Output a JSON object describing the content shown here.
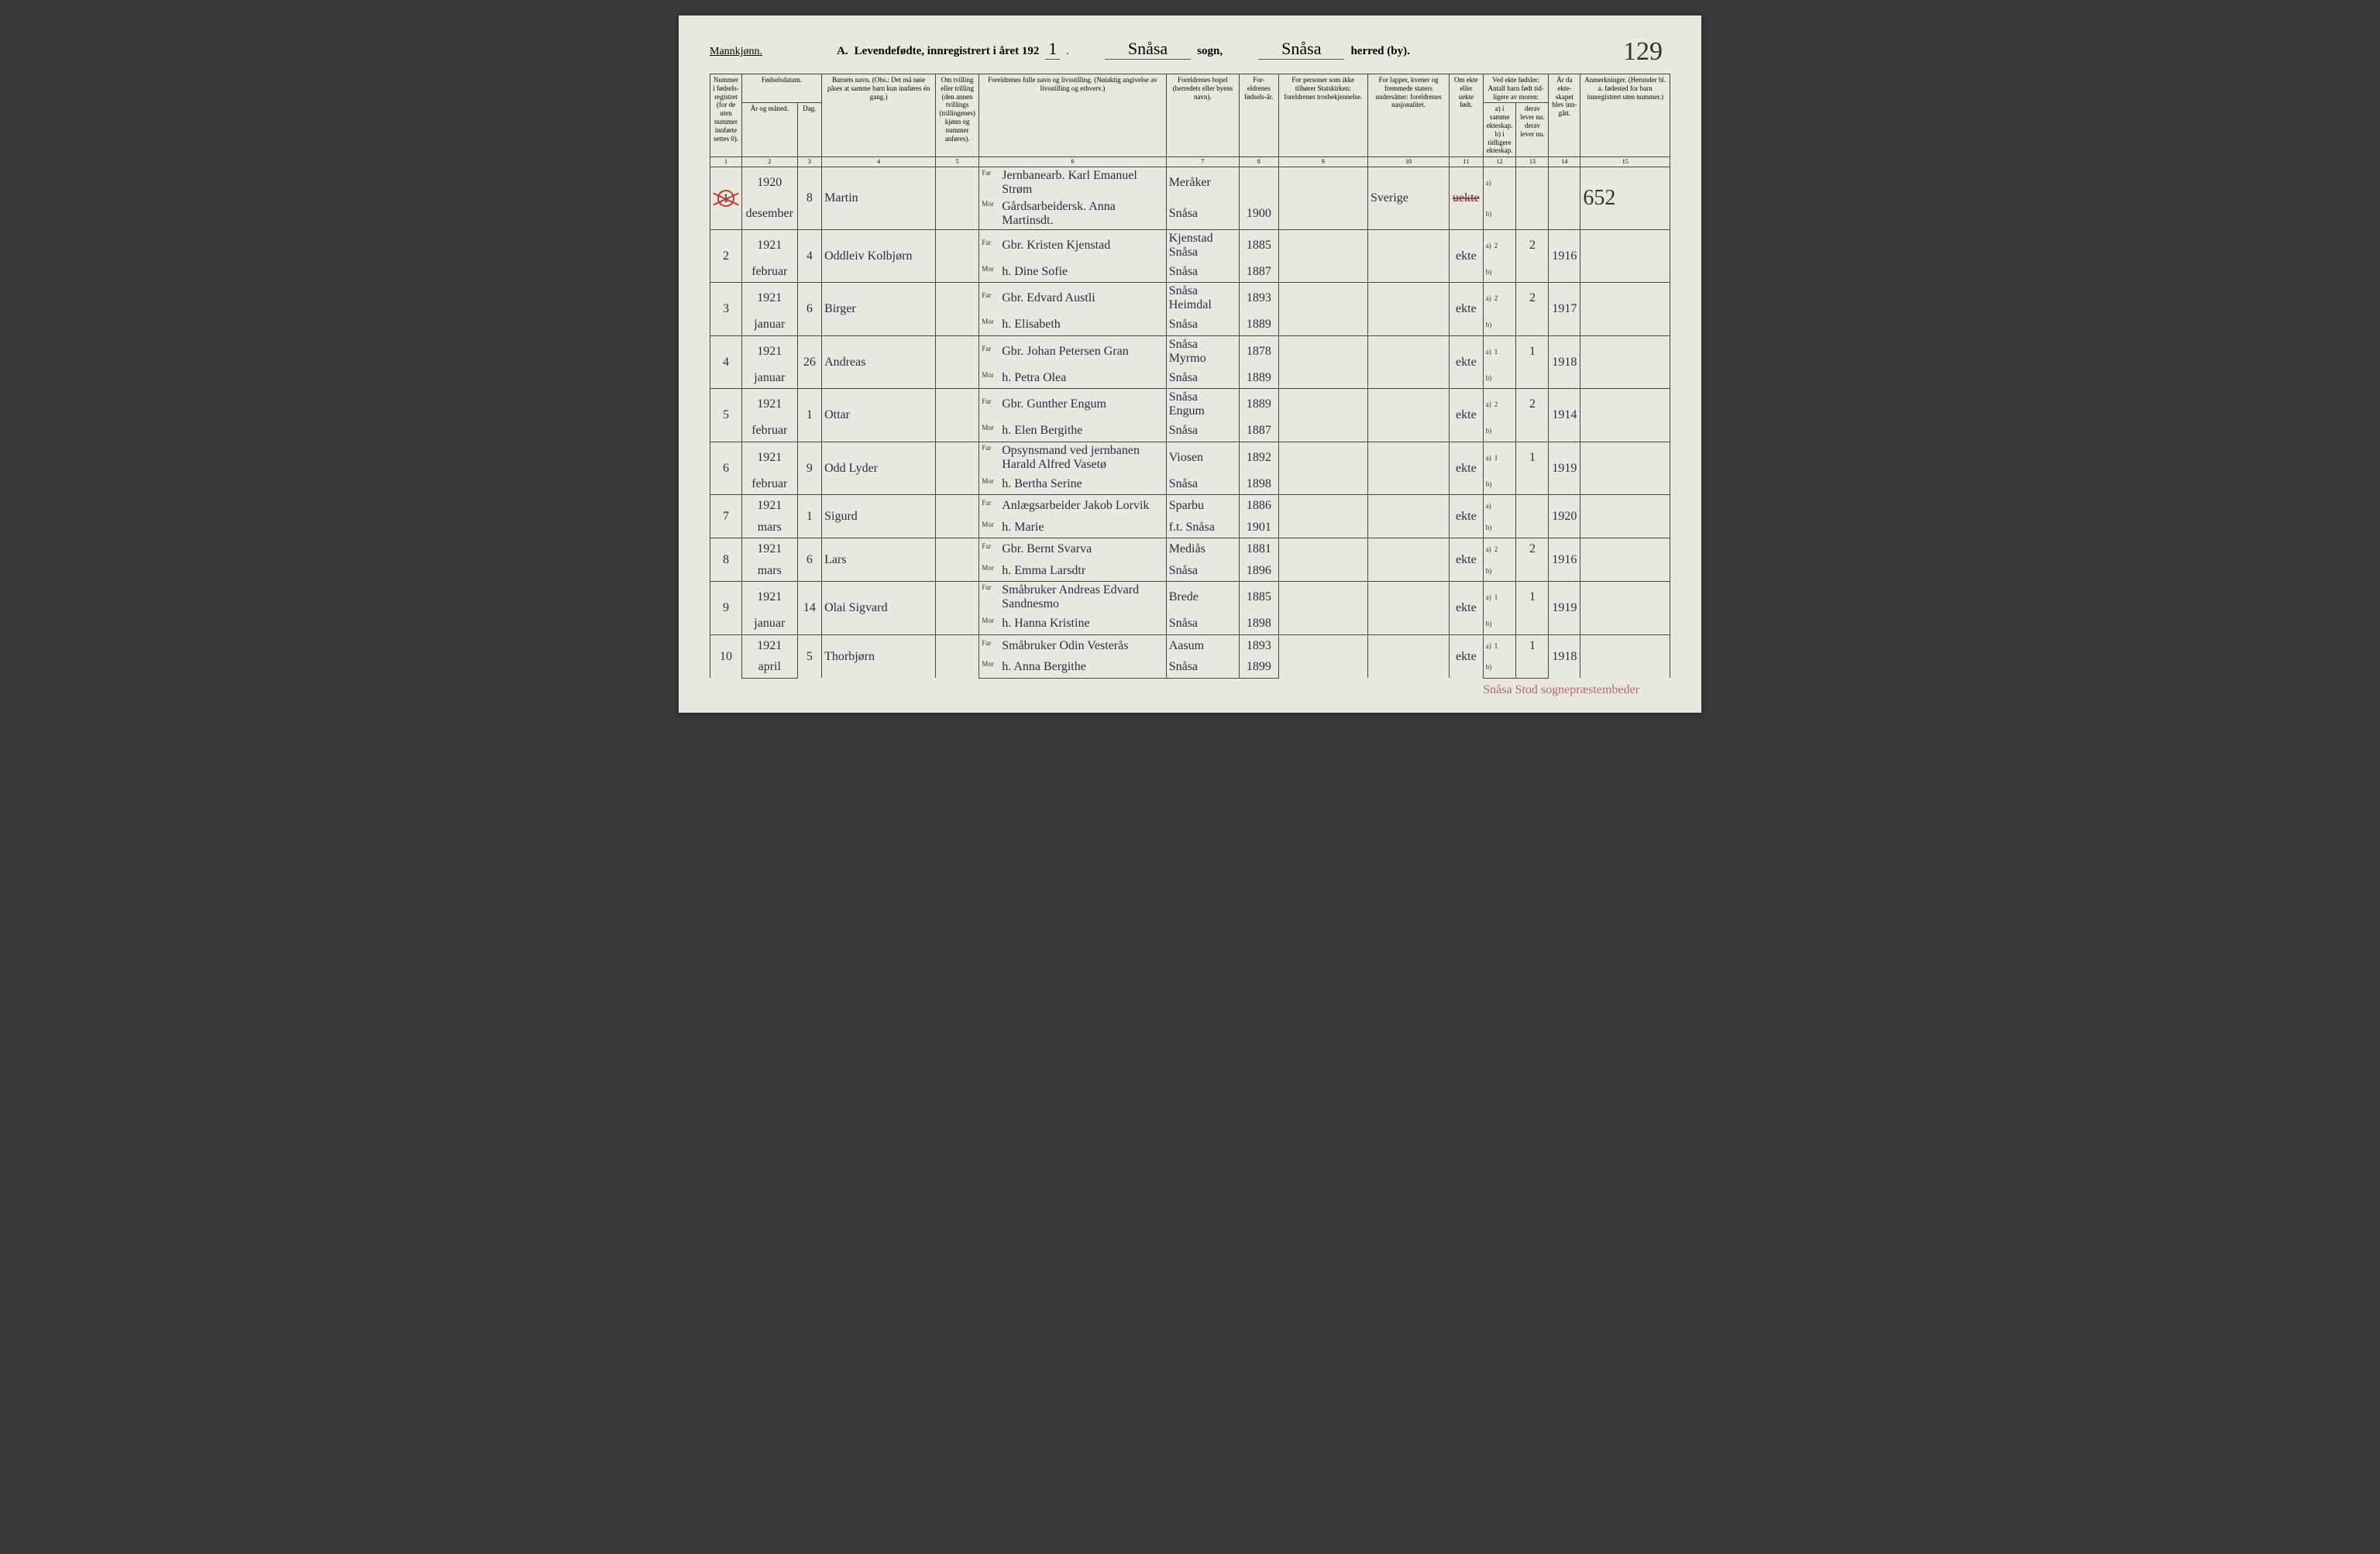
{
  "header": {
    "gender": "Mannkjønn.",
    "title_a": "A.",
    "title_text": "Levendefødte, innregistrert i året 192",
    "year_suffix": "1",
    "sogn_value": "Snåsa",
    "sogn_label": "sogn,",
    "herred_value": "Snåsa",
    "herred_label": "herred (by).",
    "page_number": "129"
  },
  "columns": {
    "c1": "Nummer i fødsels-registret (for de uten nummer innførte settes 0).",
    "c2_top": "Fødselsdatum.",
    "c2_a": "År og måned.",
    "c2_b": "Dag.",
    "c4": "Barnets navn. (Obs.: Det må nøie påses at samme barn kun innføres én gang.)",
    "c5": "Om tvilling eller trilling (den annen tvillings (trillingenes) kjønn og nummer anføres).",
    "c6": "Foreldrenes fulle navn og livsstilling. (Nøiaktig angivelse av livsstilling og erhverv.)",
    "c7": "Foreldrenes bopel (herredets eller byens navn).",
    "c8": "For-eldrenes fødsels-år.",
    "c9": "For personer som ikke tilhører Statskirken: foreldrenes trosbekjennelse.",
    "c10": "For lapper, kvener og fremmede staters undersåtter: foreldrenes nasjonalitet.",
    "c11": "Om ekte eller uekte født.",
    "c12_top": "Ved ekte fødsler: Antall barn født tid-ligere av moren:",
    "c12_a": "a) i samme ekteskap.",
    "c12_b": "b) i tidligere ekteskap.",
    "c13_top": "derav lever nu.",
    "c13_b": "derav lever nu.",
    "c14": "År da ekte-skapet blev inn-gått.",
    "c15": "Anmerkninger. (Herunder bl. a. fødested for barn innregistrert uten nummer.)",
    "nums": [
      "1",
      "2",
      "3",
      "4",
      "5",
      "6",
      "7",
      "8",
      "9",
      "10",
      "11",
      "12",
      "13",
      "14",
      "15"
    ],
    "far": "Far",
    "mor": "Mor",
    "a": "a)",
    "b": "b)"
  },
  "rows": [
    {
      "num": "1",
      "crossed": true,
      "year": "1920",
      "month": "desember",
      "day": "8",
      "child": "Martin",
      "far": "Jernbanearb. Karl Emanuel Strøm",
      "mor": "Gårdsarbeidersk. Anna Martinsdt.",
      "place_f": "Meråker",
      "place_m": "Snåsa",
      "pyear_f": "",
      "pyear_m": "1900",
      "nat": "Sverige",
      "ekte": "uekte",
      "ekte_strike": true,
      "a": "",
      "b": "",
      "c13": "",
      "c14": "",
      "note": "652"
    },
    {
      "num": "2",
      "year": "1921",
      "month": "februar",
      "day": "4",
      "child": "Oddleiv Kolbjørn",
      "far": "Gbr. Kristen Kjenstad",
      "mor": "h. Dine Sofie",
      "place_f": "Kjenstad Snåsa",
      "place_m": "Snåsa",
      "pyear_f": "1885",
      "pyear_m": "1887",
      "nat": "",
      "ekte": "ekte",
      "a": "2",
      "b": "",
      "c13": "2",
      "c14": "1916",
      "note": ""
    },
    {
      "num": "3",
      "year": "1921",
      "month": "januar",
      "day": "6",
      "child": "Birger",
      "far": "Gbr. Edvard Austli",
      "mor": "h. Elisabeth",
      "place_f": "Snåsa Heimdal",
      "place_m": "Snåsa",
      "pyear_f": "1893",
      "pyear_m": "1889",
      "nat": "",
      "ekte": "ekte",
      "a": "2",
      "b": "",
      "c13": "2",
      "c14": "1917",
      "note": ""
    },
    {
      "num": "4",
      "year": "1921",
      "month": "januar",
      "day": "26",
      "child": "Andreas",
      "far": "Gbr. Johan Petersen Gran",
      "mor": "h. Petra Olea",
      "place_f": "Snåsa Myrmo",
      "place_m": "Snåsa",
      "pyear_f": "1878",
      "pyear_m": "1889",
      "nat": "",
      "ekte": "ekte",
      "a": "1",
      "b": "",
      "c13": "1",
      "c14": "1918",
      "note": ""
    },
    {
      "num": "5",
      "year": "1921",
      "month": "februar",
      "day": "1",
      "child": "Ottar",
      "far": "Gbr. Gunther Engum",
      "mor": "h. Elen Bergithe",
      "place_f": "Snåsa Engum",
      "place_m": "Snåsa",
      "pyear_f": "1889",
      "pyear_m": "1887",
      "nat": "",
      "ekte": "ekte",
      "a": "2",
      "b": "",
      "c13": "2",
      "c14": "1914",
      "note": ""
    },
    {
      "num": "6",
      "year": "1921",
      "month": "februar",
      "day": "9",
      "child": "Odd Lyder",
      "far": "Opsynsmand ved jernbanen Harald Alfred Vasetø",
      "mor": "h. Bertha Serine",
      "place_f": "Viosen",
      "place_m": "Snåsa",
      "pyear_f": "1892",
      "pyear_m": "1898",
      "nat": "",
      "ekte": "ekte",
      "a": "1",
      "b": "",
      "c13": "1",
      "c14": "1919",
      "note": ""
    },
    {
      "num": "7",
      "year": "1921",
      "month": "mars",
      "day": "1",
      "child": "Sigurd",
      "far": "Anlægsarbeider Jakob Lorvik",
      "mor": "h. Marie",
      "place_f": "Sparbu",
      "place_m": "f.t. Snåsa",
      "pyear_f": "1886",
      "pyear_m": "1901",
      "nat": "",
      "ekte": "ekte",
      "a": "",
      "b": "",
      "c13": "",
      "c14": "1920",
      "note": ""
    },
    {
      "num": "8",
      "year": "1921",
      "month": "mars",
      "day": "6",
      "child": "Lars",
      "far": "Gbr. Bernt Svarva",
      "mor": "h. Emma Larsdtr",
      "place_f": "Mediås",
      "place_m": "Snåsa",
      "pyear_f": "1881",
      "pyear_m": "1896",
      "nat": "",
      "ekte": "ekte",
      "a": "2",
      "b": "",
      "c13": "2",
      "c14": "1916",
      "note": ""
    },
    {
      "num": "9",
      "year": "1921",
      "month": "januar",
      "day": "14",
      "child": "Olai Sigvard",
      "far": "Småbruker Andreas Edvard Sandnesmo",
      "mor": "h. Hanna Kristine",
      "place_f": "Brede",
      "place_m": "Snåsa",
      "pyear_f": "1885",
      "pyear_m": "1898",
      "nat": "",
      "ekte": "ekte",
      "a": "1",
      "b": "",
      "c13": "1",
      "c14": "1919",
      "note": ""
    },
    {
      "num": "10",
      "year": "1921",
      "month": "april",
      "day": "5",
      "child": "Thorbjørn",
      "far": "Småbruker Odin Vesterås",
      "mor": "h. Anna Bergithe",
      "place_f": "Aasum",
      "place_m": "Snåsa",
      "pyear_f": "1893",
      "pyear_m": "1899",
      "nat": "",
      "ekte": "ekte",
      "a": "1",
      "b": "",
      "c13": "1",
      "c14": "1918",
      "note": ""
    }
  ],
  "footer": "Snåsa Stod sognepræstembeder"
}
